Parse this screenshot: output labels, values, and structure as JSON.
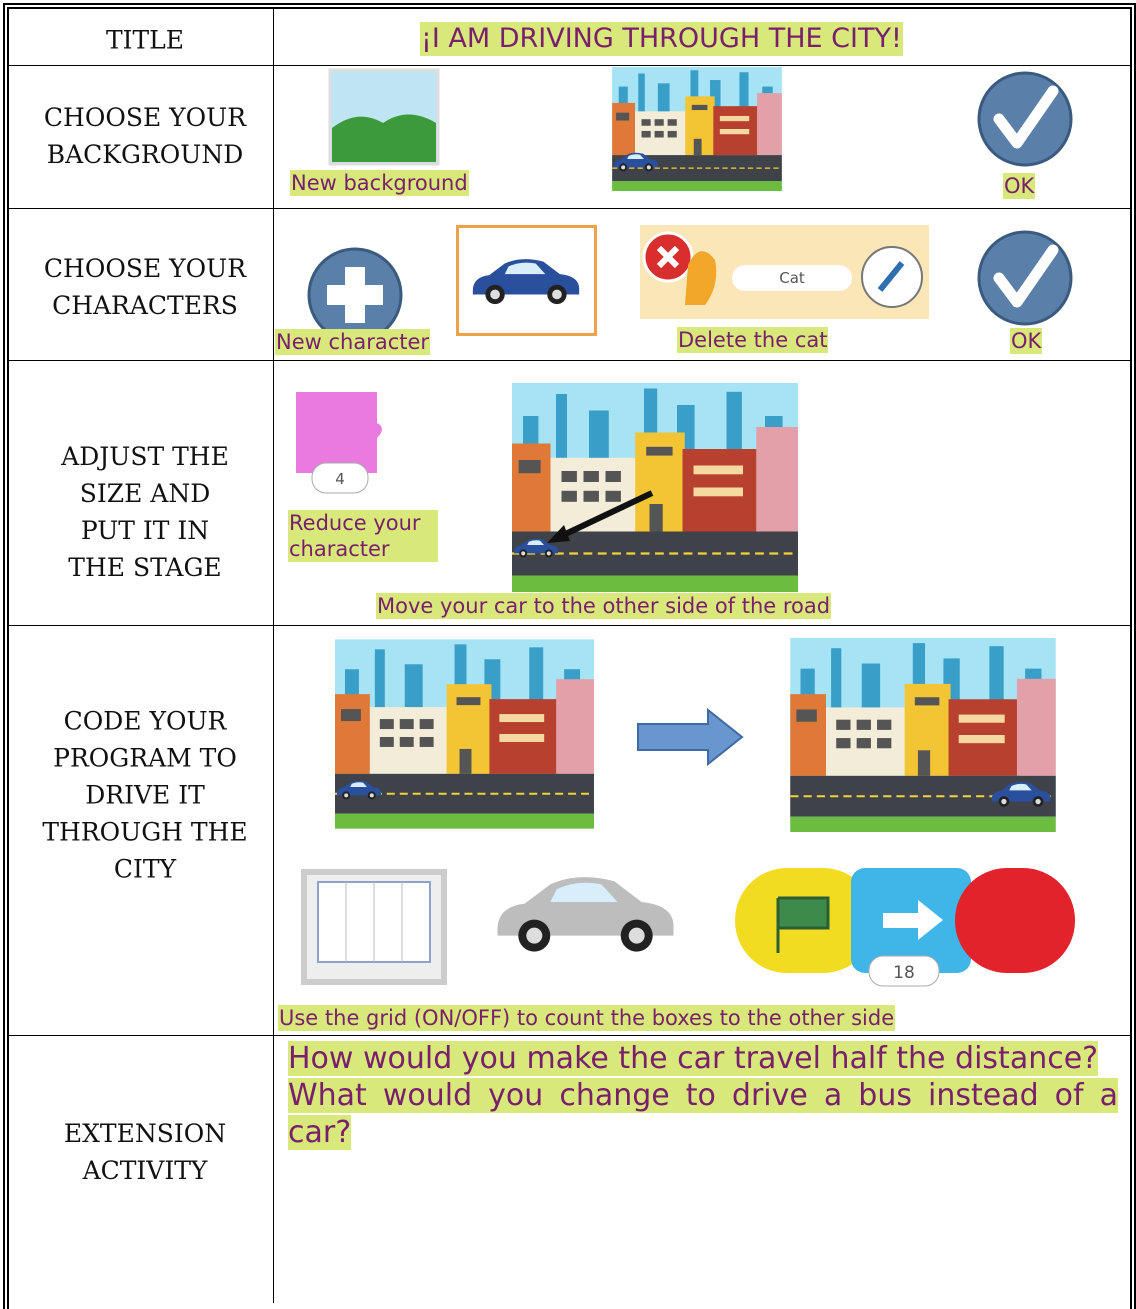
{
  "table": {
    "rows": [
      {
        "label": "TITLE",
        "title": "¡I AM DRIVING THROUGH THE CITY!"
      },
      {
        "label": "CHOOSE YOUR BACKGROUND",
        "captions": [
          "New background",
          "OK"
        ]
      },
      {
        "label": "CHOOSE YOUR CHARACTERS",
        "captions": [
          "New character",
          "Delete the cat",
          "OK"
        ],
        "sprite_name": "Cat"
      },
      {
        "label": "ADJUST THE SIZE AND PUT IT IN THE STAGE",
        "captions": [
          "Reduce your character",
          "Move your car to the other side of the road"
        ],
        "block_value": 4
      },
      {
        "label": "CODE YOUR PROGRAM TO DRIVE IT THROUGH THE CITY",
        "captions": [
          "Use the grid (ON/OFF) to count the boxes to the other side"
        ],
        "block_value": 18
      },
      {
        "label": "EXTENSION ACTIVITY",
        "questions": [
          "How would you make the car travel half the distance?",
          "What would you change to drive a bus instead of a car?"
        ]
      }
    ]
  }
}
